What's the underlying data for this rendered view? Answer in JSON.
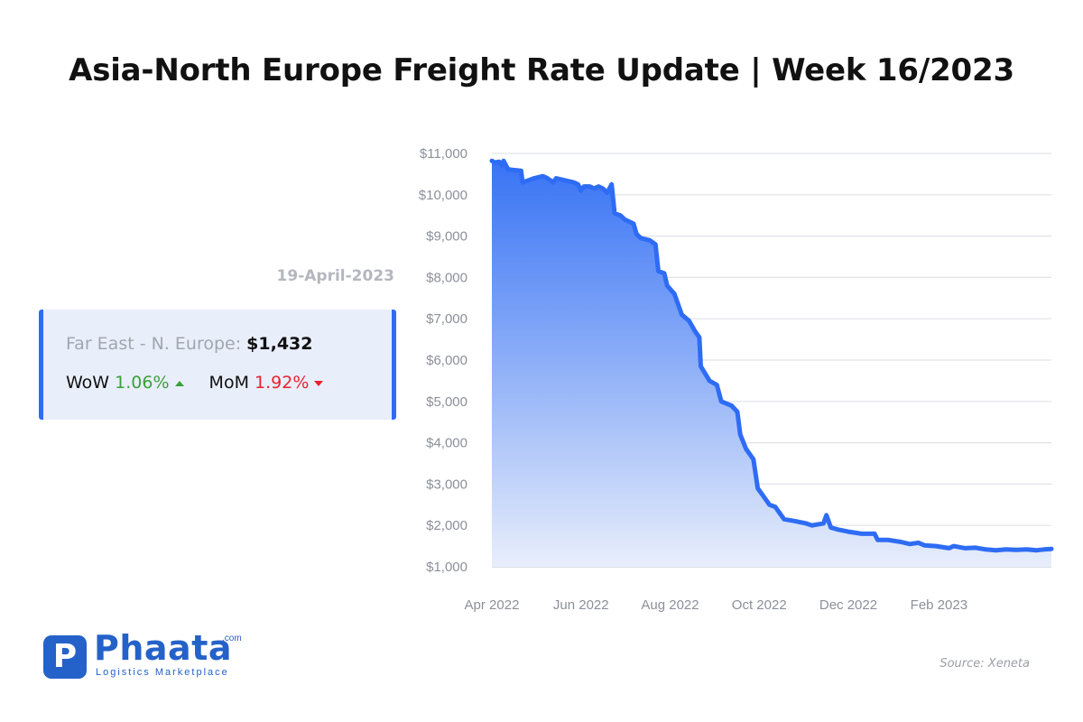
{
  "title": "Asia-North Europe Freight Rate Update | Week 16/2023",
  "date_label": "19-April-2023",
  "card": {
    "route_label": "Far East - N. Europe:",
    "price": "$1,432",
    "wow_label": "WoW",
    "wow_value": "1.06%",
    "wow_direction": "up",
    "mom_label": "MoM",
    "mom_value": "1.92%",
    "mom_direction": "down",
    "accent_color": "#2e6cf4"
  },
  "logo": {
    "name": "Phaata",
    "domain_suffix": ".com",
    "tagline": "Logistics Marketplace",
    "brand_color": "#2462c9"
  },
  "source": "Source: Xeneta",
  "chart_data": {
    "type": "area",
    "title": "",
    "xlabel": "",
    "ylabel": "",
    "ylim": [
      1000,
      11000
    ],
    "xlim": [
      "2022-04-01",
      "2023-04-19"
    ],
    "grid": true,
    "legend": "none",
    "y_ticks": [
      1000,
      2000,
      3000,
      4000,
      5000,
      6000,
      7000,
      8000,
      9000,
      10000,
      11000
    ],
    "y_tick_labels": [
      "$1,000",
      "$2,000",
      "$3,000",
      "$4,000",
      "$5,000",
      "$6,000",
      "$7,000",
      "$8,000",
      "$9,000",
      "$10,000",
      "$11,000"
    ],
    "x_ticks": [
      "2022-04-01",
      "2022-06-01",
      "2022-08-01",
      "2022-10-01",
      "2022-12-01",
      "2023-02-01"
    ],
    "x_tick_labels": [
      "Apr 2022",
      "Jun 2022",
      "Aug 2022",
      "Oct 2022",
      "Dec 2022",
      "Feb 2023"
    ],
    "line_color": "#2e6cf4",
    "fill_color_top": "#2e6cf4",
    "fill_color_bottom": "#e8eefb",
    "series": [
      {
        "points": [
          [
            "2022-04-01",
            10820
          ],
          [
            "2022-04-03",
            10780
          ],
          [
            "2022-04-06",
            10800
          ],
          [
            "2022-04-08",
            10700
          ],
          [
            "2022-04-09",
            10820
          ],
          [
            "2022-04-12",
            10620
          ],
          [
            "2022-04-15",
            10600
          ],
          [
            "2022-04-21",
            10580
          ],
          [
            "2022-04-22",
            10300
          ],
          [
            "2022-04-26",
            10350
          ],
          [
            "2022-04-30",
            10400
          ],
          [
            "2022-05-06",
            10450
          ],
          [
            "2022-05-09",
            10400
          ],
          [
            "2022-05-13",
            10300
          ],
          [
            "2022-05-15",
            10400
          ],
          [
            "2022-05-21",
            10350
          ],
          [
            "2022-05-27",
            10300
          ],
          [
            "2022-05-30",
            10250
          ],
          [
            "2022-06-01",
            10100
          ],
          [
            "2022-06-03",
            10200
          ],
          [
            "2022-06-07",
            10200
          ],
          [
            "2022-06-10",
            10150
          ],
          [
            "2022-06-13",
            10200
          ],
          [
            "2022-06-16",
            10150
          ],
          [
            "2022-06-19",
            10050
          ],
          [
            "2022-06-22",
            10250
          ],
          [
            "2022-06-24",
            9550
          ],
          [
            "2022-06-28",
            9500
          ],
          [
            "2022-07-01",
            9400
          ],
          [
            "2022-07-07",
            9300
          ],
          [
            "2022-07-09",
            9050
          ],
          [
            "2022-07-12",
            8950
          ],
          [
            "2022-07-18",
            8900
          ],
          [
            "2022-07-22",
            8800
          ],
          [
            "2022-07-24",
            8150
          ],
          [
            "2022-07-28",
            8100
          ],
          [
            "2022-07-30",
            7800
          ],
          [
            "2022-08-04",
            7600
          ],
          [
            "2022-08-09",
            7100
          ],
          [
            "2022-08-14",
            6950
          ],
          [
            "2022-08-18",
            6700
          ],
          [
            "2022-08-21",
            6550
          ],
          [
            "2022-08-22",
            5850
          ],
          [
            "2022-08-28",
            5500
          ],
          [
            "2022-09-02",
            5400
          ],
          [
            "2022-09-05",
            5000
          ],
          [
            "2022-09-12",
            4900
          ],
          [
            "2022-09-16",
            4750
          ],
          [
            "2022-09-18",
            4200
          ],
          [
            "2022-09-22",
            3850
          ],
          [
            "2022-09-27",
            3600
          ],
          [
            "2022-09-30",
            2900
          ],
          [
            "2022-10-04",
            2700
          ],
          [
            "2022-10-08",
            2500
          ],
          [
            "2022-10-12",
            2450
          ],
          [
            "2022-10-15",
            2300
          ],
          [
            "2022-10-18",
            2150
          ],
          [
            "2022-10-26",
            2100
          ],
          [
            "2022-11-02",
            2050
          ],
          [
            "2022-11-06",
            2000
          ],
          [
            "2022-11-14",
            2050
          ],
          [
            "2022-11-16",
            2250
          ],
          [
            "2022-11-19",
            1950
          ],
          [
            "2022-11-24",
            1900
          ],
          [
            "2022-12-01",
            1850
          ],
          [
            "2022-12-10",
            1800
          ],
          [
            "2022-12-19",
            1800
          ],
          [
            "2022-12-21",
            1650
          ],
          [
            "2022-12-28",
            1650
          ],
          [
            "2023-01-06",
            1600
          ],
          [
            "2023-01-12",
            1550
          ],
          [
            "2023-01-18",
            1580
          ],
          [
            "2023-01-22",
            1520
          ],
          [
            "2023-01-30",
            1500
          ],
          [
            "2023-02-08",
            1450
          ],
          [
            "2023-02-11",
            1500
          ],
          [
            "2023-02-19",
            1450
          ],
          [
            "2023-02-26",
            1460
          ],
          [
            "2023-03-05",
            1420
          ],
          [
            "2023-03-12",
            1400
          ],
          [
            "2023-03-19",
            1420
          ],
          [
            "2023-03-26",
            1410
          ],
          [
            "2023-04-02",
            1420
          ],
          [
            "2023-04-09",
            1400
          ],
          [
            "2023-04-14",
            1420
          ],
          [
            "2023-04-19",
            1432
          ]
        ]
      }
    ]
  }
}
